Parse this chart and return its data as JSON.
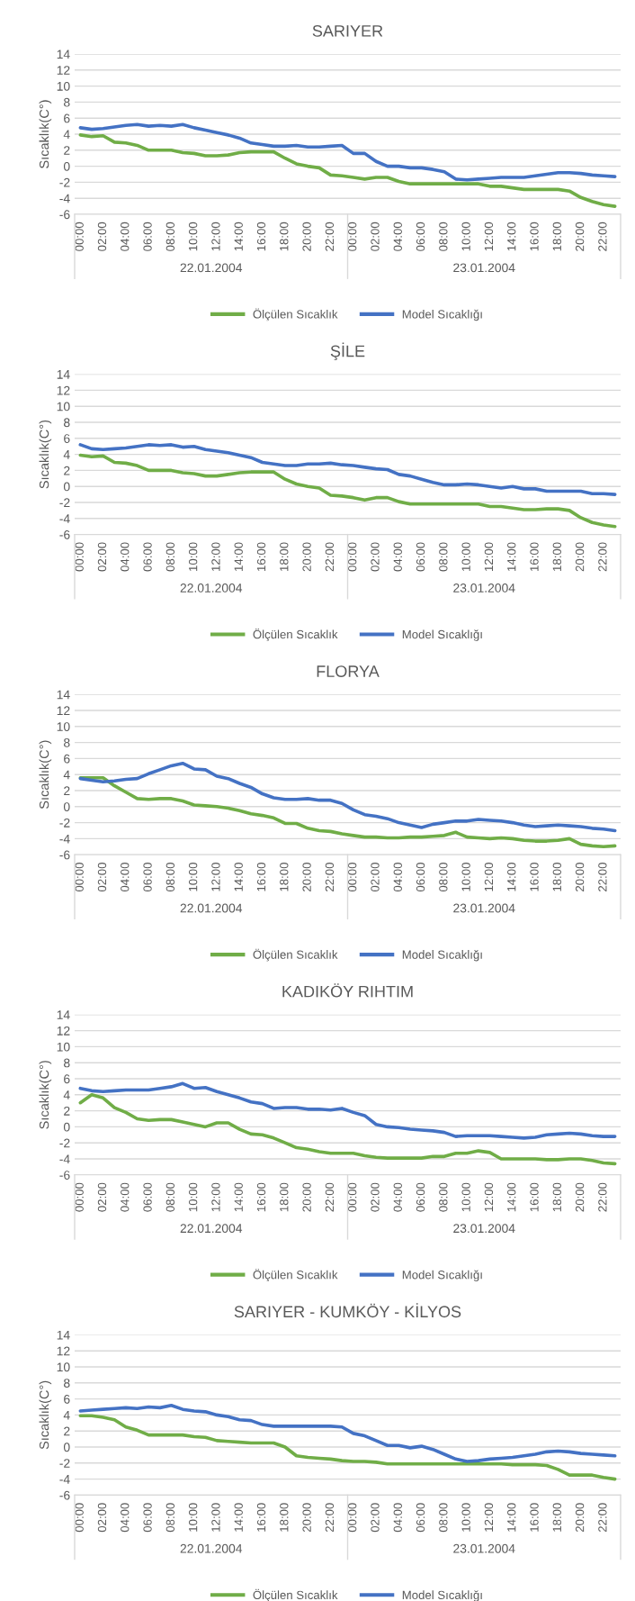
{
  "chart_data": [
    {
      "type": "line",
      "title": "SARIYER",
      "ylabel": "Sıcaklık(C°)",
      "categories": [
        "00:00",
        null,
        "02:00",
        null,
        "04:00",
        null,
        "06:00",
        null,
        "08:00",
        null,
        "10:00",
        null,
        "12:00",
        null,
        "14:00",
        null,
        "16:00",
        null,
        "18:00",
        null,
        "20:00",
        null,
        "22:00",
        null,
        "00:00",
        null,
        "02:00",
        null,
        "04:00",
        null,
        "06:00",
        null,
        "08:00",
        null,
        "10:00",
        null,
        "12:00",
        null,
        "14:00",
        null,
        "16:00",
        null,
        "18:00",
        null,
        "20:00",
        null,
        "22:00",
        null
      ],
      "ylim": [
        -6,
        14
      ],
      "yticks": [
        -6,
        -4,
        -2,
        0,
        2,
        4,
        6,
        8,
        10,
        12,
        14
      ],
      "grid": "y",
      "legend": "bottom",
      "annotations": [
        "22.01.2004",
        "23.01.2004"
      ],
      "series": [
        {
          "name": "Ölçülen Sıcaklık",
          "color": "#70ad47",
          "values": [
            3.9,
            3.7,
            3.8,
            3.0,
            2.9,
            2.6,
            2.0,
            2.0,
            2.0,
            1.7,
            1.6,
            1.3,
            1.3,
            1.4,
            1.7,
            1.8,
            1.8,
            1.8,
            1.0,
            0.3,
            0.0,
            -0.2,
            -1.1,
            -1.2,
            -1.4,
            -1.6,
            -1.4,
            -1.4,
            -1.9,
            -2.2,
            -2.2,
            -2.2,
            -2.2,
            -2.2,
            -2.2,
            -2.2,
            -2.5,
            -2.5,
            -2.7,
            -2.9,
            -2.9,
            -2.9,
            -2.9,
            -3.1,
            -3.9,
            -4.4,
            -4.8,
            -5.0
          ]
        },
        {
          "name": "Model Sıcaklığı",
          "color": "#4472c4",
          "values": [
            4.8,
            4.6,
            4.7,
            4.9,
            5.1,
            5.2,
            5.0,
            5.1,
            5.0,
            5.2,
            4.8,
            4.5,
            4.2,
            3.9,
            3.5,
            2.9,
            2.7,
            2.5,
            2.5,
            2.6,
            2.4,
            2.4,
            2.5,
            2.6,
            1.6,
            1.6,
            0.6,
            0.0,
            0.0,
            -0.2,
            -0.2,
            -0.4,
            -0.7,
            -1.6,
            -1.7,
            -1.6,
            -1.5,
            -1.4,
            -1.4,
            -1.4,
            -1.2,
            -1.0,
            -0.8,
            -0.8,
            -0.9,
            -1.1,
            -1.2,
            -1.3
          ]
        }
      ]
    },
    {
      "type": "line",
      "title": "ŞİLE",
      "ylabel": "Sıcaklık(C°)",
      "categories": [
        "00:00",
        null,
        "02:00",
        null,
        "04:00",
        null,
        "06:00",
        null,
        "08:00",
        null,
        "10:00",
        null,
        "12:00",
        null,
        "14:00",
        null,
        "16:00",
        null,
        "18:00",
        null,
        "20:00",
        null,
        "22:00",
        null,
        "00:00",
        null,
        "02:00",
        null,
        "04:00",
        null,
        "06:00",
        null,
        "08:00",
        null,
        "10:00",
        null,
        "12:00",
        null,
        "14:00",
        null,
        "16:00",
        null,
        "18:00",
        null,
        "20:00",
        null,
        "22:00",
        null
      ],
      "ylim": [
        -6,
        14
      ],
      "yticks": [
        -6,
        -4,
        -2,
        0,
        2,
        4,
        6,
        8,
        10,
        12,
        14
      ],
      "grid": "y",
      "legend": "bottom",
      "annotations": [
        "22.01.2004",
        "23.01.2004"
      ],
      "series": [
        {
          "name": "Ölçülen Sıcaklık",
          "color": "#70ad47",
          "values": [
            3.9,
            3.7,
            3.8,
            3.0,
            2.9,
            2.6,
            2.0,
            2.0,
            2.0,
            1.7,
            1.6,
            1.3,
            1.3,
            1.5,
            1.7,
            1.8,
            1.8,
            1.8,
            0.9,
            0.3,
            0.0,
            -0.2,
            -1.1,
            -1.2,
            -1.4,
            -1.7,
            -1.4,
            -1.4,
            -1.9,
            -2.2,
            -2.2,
            -2.2,
            -2.2,
            -2.2,
            -2.2,
            -2.2,
            -2.5,
            -2.5,
            -2.7,
            -2.9,
            -2.9,
            -2.8,
            -2.8,
            -3.0,
            -3.9,
            -4.5,
            -4.8,
            -5.0
          ]
        },
        {
          "name": "Model Sıcaklığı",
          "color": "#4472c4",
          "values": [
            5.2,
            4.7,
            4.6,
            4.7,
            4.8,
            5.0,
            5.2,
            5.1,
            5.2,
            4.9,
            5.0,
            4.6,
            4.4,
            4.2,
            3.9,
            3.6,
            3.0,
            2.8,
            2.6,
            2.6,
            2.8,
            2.8,
            2.9,
            2.7,
            2.6,
            2.4,
            2.2,
            2.1,
            1.5,
            1.3,
            0.9,
            0.5,
            0.2,
            0.2,
            0.3,
            0.2,
            0.0,
            -0.2,
            0.0,
            -0.3,
            -0.3,
            -0.6,
            -0.6,
            -0.6,
            -0.6,
            -0.9,
            -0.9,
            -1.0
          ]
        }
      ]
    },
    {
      "type": "line",
      "title": "FLORYA",
      "ylabel": "Sıcaklık(C°)",
      "categories": [
        "00:00",
        null,
        "02:00",
        null,
        "04:00",
        null,
        "06:00",
        null,
        "08:00",
        null,
        "10:00",
        null,
        "12:00",
        null,
        "14:00",
        null,
        "16:00",
        null,
        "18:00",
        null,
        "20:00",
        null,
        "22:00",
        null,
        "00:00",
        null,
        "02:00",
        null,
        "04:00",
        null,
        "06:00",
        null,
        "08:00",
        null,
        "10:00",
        null,
        "12:00",
        null,
        "14:00",
        null,
        "16:00",
        null,
        "18:00",
        null,
        "20:00",
        null,
        "22:00",
        null
      ],
      "ylim": [
        -6,
        14
      ],
      "yticks": [
        -6,
        -4,
        -2,
        0,
        2,
        4,
        6,
        8,
        10,
        12,
        14
      ],
      "grid": "y",
      "legend": "bottom",
      "annotations": [
        "22.01.2004",
        "23.01.2004"
      ],
      "series": [
        {
          "name": "Ölçülen Sıcaklık",
          "color": "#70ad47",
          "values": [
            3.6,
            3.6,
            3.6,
            2.6,
            1.8,
            1.0,
            0.9,
            1.0,
            1.0,
            0.7,
            0.2,
            0.1,
            0.0,
            -0.2,
            -0.5,
            -0.9,
            -1.1,
            -1.4,
            -2.1,
            -2.1,
            -2.7,
            -3.0,
            -3.1,
            -3.4,
            -3.6,
            -3.8,
            -3.8,
            -3.9,
            -3.9,
            -3.8,
            -3.8,
            -3.7,
            -3.6,
            -3.2,
            -3.8,
            -3.9,
            -4.0,
            -3.9,
            -4.0,
            -4.2,
            -4.3,
            -4.3,
            -4.2,
            -4.0,
            -4.7,
            -4.9,
            -5.0,
            -4.9
          ]
        },
        {
          "name": "Model Sıcaklığı",
          "color": "#4472c4",
          "values": [
            3.5,
            3.3,
            3.1,
            3.2,
            3.4,
            3.5,
            4.1,
            4.6,
            5.1,
            5.4,
            4.7,
            4.6,
            3.8,
            3.5,
            2.9,
            2.4,
            1.6,
            1.1,
            0.9,
            0.9,
            1.0,
            0.8,
            0.8,
            0.4,
            -0.4,
            -1.0,
            -1.2,
            -1.5,
            -2.0,
            -2.3,
            -2.6,
            -2.2,
            -2.0,
            -1.8,
            -1.8,
            -1.6,
            -1.7,
            -1.8,
            -2.0,
            -2.3,
            -2.5,
            -2.4,
            -2.3,
            -2.4,
            -2.5,
            -2.7,
            -2.8,
            -3.0
          ]
        }
      ]
    },
    {
      "type": "line",
      "title": "KADIKÖY RIHTIM",
      "ylabel": "Sıcaklık(C°)",
      "categories": [
        "00:00",
        null,
        "02:00",
        null,
        "04:00",
        null,
        "06:00",
        null,
        "08:00",
        null,
        "10:00",
        null,
        "12:00",
        null,
        "14:00",
        null,
        "16:00",
        null,
        "18:00",
        null,
        "20:00",
        null,
        "22:00",
        null,
        "00:00",
        null,
        "02:00",
        null,
        "04:00",
        null,
        "06:00",
        null,
        "08:00",
        null,
        "10:00",
        null,
        "12:00",
        null,
        "14:00",
        null,
        "16:00",
        null,
        "18:00",
        null,
        "20:00",
        null,
        "22:00",
        null
      ],
      "ylim": [
        -6,
        14
      ],
      "yticks": [
        -6,
        -4,
        -2,
        0,
        2,
        4,
        6,
        8,
        10,
        12,
        14
      ],
      "grid": "y",
      "legend": "bottom",
      "annotations": [
        "22.01.2004",
        "23.01.2004"
      ],
      "series": [
        {
          "name": "Ölçülen Sıcaklık",
          "color": "#70ad47",
          "values": [
            3.0,
            4.0,
            3.6,
            2.4,
            1.8,
            1.0,
            0.8,
            0.9,
            0.9,
            0.6,
            0.3,
            0.0,
            0.5,
            0.5,
            -0.3,
            -0.9,
            -1.0,
            -1.4,
            -2.0,
            -2.6,
            -2.8,
            -3.1,
            -3.3,
            -3.3,
            -3.3,
            -3.6,
            -3.8,
            -3.9,
            -3.9,
            -3.9,
            -3.9,
            -3.7,
            -3.7,
            -3.3,
            -3.3,
            -3.0,
            -3.2,
            -4.0,
            -4.0,
            -4.0,
            -4.0,
            -4.1,
            -4.1,
            -4.0,
            -4.0,
            -4.2,
            -4.5,
            -4.6
          ]
        },
        {
          "name": "Model Sıcaklığı",
          "color": "#4472c4",
          "values": [
            4.8,
            4.5,
            4.4,
            4.5,
            4.6,
            4.6,
            4.6,
            4.8,
            5.0,
            5.4,
            4.8,
            4.9,
            4.4,
            4.0,
            3.6,
            3.1,
            2.9,
            2.3,
            2.4,
            2.4,
            2.2,
            2.2,
            2.1,
            2.3,
            1.8,
            1.4,
            0.3,
            0.0,
            -0.1,
            -0.3,
            -0.4,
            -0.5,
            -0.7,
            -1.2,
            -1.1,
            -1.1,
            -1.1,
            -1.2,
            -1.3,
            -1.4,
            -1.3,
            -1.0,
            -0.9,
            -0.8,
            -0.9,
            -1.1,
            -1.2,
            -1.2
          ]
        }
      ]
    },
    {
      "type": "line",
      "title": "SARIYER - KUMKÖY - KİLYOS",
      "ylabel": "Sıcaklık(C°)",
      "categories": [
        "00:00",
        null,
        "02:00",
        null,
        "04:00",
        null,
        "06:00",
        null,
        "08:00",
        null,
        "10:00",
        null,
        "12:00",
        null,
        "14:00",
        null,
        "16:00",
        null,
        "18:00",
        null,
        "20:00",
        null,
        "22:00",
        null,
        "00:00",
        null,
        "02:00",
        null,
        "04:00",
        null,
        "06:00",
        null,
        "08:00",
        null,
        "10:00",
        null,
        "12:00",
        null,
        "14:00",
        null,
        "16:00",
        null,
        "18:00",
        null,
        "20:00",
        null,
        "22:00",
        null
      ],
      "ylim": [
        -6,
        14
      ],
      "yticks": [
        -6,
        -4,
        -2,
        0,
        2,
        4,
        6,
        8,
        10,
        12,
        14
      ],
      "grid": "y",
      "legend": "bottom",
      "annotations": [
        "22.01.2004",
        "23.01.2004"
      ],
      "series": [
        {
          "name": "Ölçülen Sıcaklık",
          "color": "#70ad47",
          "values": [
            3.9,
            3.9,
            3.7,
            3.4,
            2.5,
            2.1,
            1.5,
            1.5,
            1.5,
            1.5,
            1.3,
            1.2,
            0.8,
            0.7,
            0.6,
            0.5,
            0.5,
            0.5,
            0.0,
            -1.1,
            -1.3,
            -1.4,
            -1.5,
            -1.7,
            -1.8,
            -1.8,
            -1.9,
            -2.1,
            -2.1,
            -2.1,
            -2.1,
            -2.1,
            -2.1,
            -2.1,
            -2.1,
            -2.1,
            -2.1,
            -2.1,
            -2.2,
            -2.2,
            -2.2,
            -2.3,
            -2.8,
            -3.5,
            -3.5,
            -3.5,
            -3.8,
            -4.0
          ]
        },
        {
          "name": "Model Sıcaklığı",
          "color": "#4472c4",
          "values": [
            4.5,
            4.6,
            4.7,
            4.8,
            4.9,
            4.8,
            5.0,
            4.9,
            5.2,
            4.7,
            4.5,
            4.4,
            4.0,
            3.8,
            3.4,
            3.3,
            2.8,
            2.6,
            2.6,
            2.6,
            2.6,
            2.6,
            2.6,
            2.5,
            1.7,
            1.4,
            0.8,
            0.2,
            0.2,
            -0.1,
            0.1,
            -0.3,
            -0.9,
            -1.5,
            -1.8,
            -1.7,
            -1.5,
            -1.4,
            -1.3,
            -1.1,
            -0.9,
            -0.6,
            -0.5,
            -0.6,
            -0.8,
            -0.9,
            -1.0,
            -1.1
          ]
        }
      ]
    }
  ]
}
